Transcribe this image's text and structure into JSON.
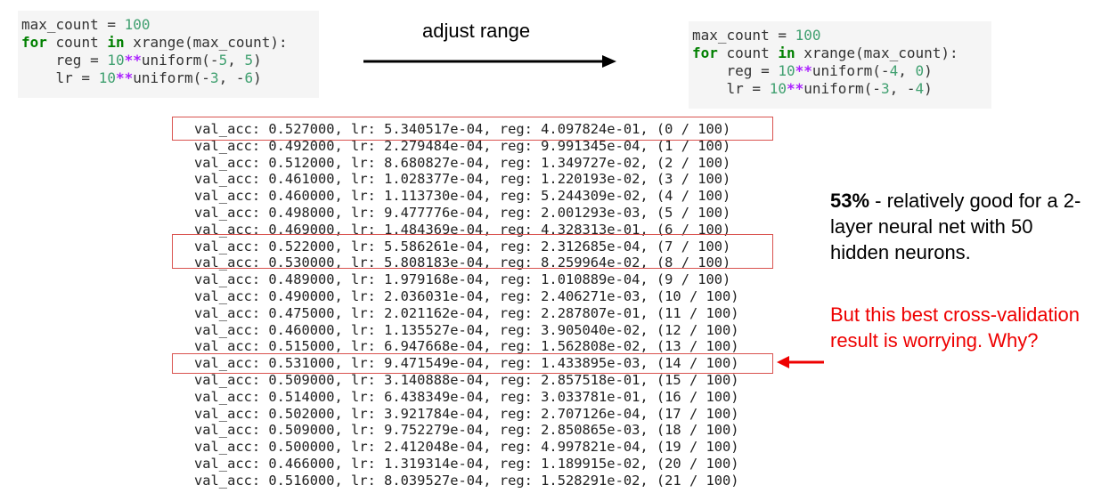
{
  "code_before": [
    [
      "max_count = ",
      "100"
    ],
    [
      "for",
      " count ",
      "in",
      " xrange(max_count):"
    ],
    [
      "    reg = ",
      "10",
      "**",
      "uniform(-",
      "5",
      ", ",
      "5",
      ")"
    ],
    [
      "    lr = ",
      "10",
      "**",
      "uniform(-",
      "3",
      ", -",
      "6",
      ")"
    ]
  ],
  "arrow_label": "adjust range",
  "code_after": [
    [
      "max_count = ",
      "100"
    ],
    [
      "for",
      " count ",
      "in",
      " xrange(max_count):"
    ],
    [
      "    reg = ",
      "10",
      "**",
      "uniform(-",
      "4",
      ", ",
      "0",
      ")"
    ],
    [
      "    lr = ",
      "10",
      "**",
      "uniform(-",
      "3",
      ", -",
      "4",
      ")"
    ]
  ],
  "log_lines": [
    "val_acc: 0.527000, lr: 5.340517e-04, reg: 4.097824e-01, (0 / 100)",
    "val_acc: 0.492000, lr: 2.279484e-04, reg: 9.991345e-04, (1 / 100)",
    "val_acc: 0.512000, lr: 8.680827e-04, reg: 1.349727e-02, (2 / 100)",
    "val_acc: 0.461000, lr: 1.028377e-04, reg: 1.220193e-02, (3 / 100)",
    "val_acc: 0.460000, lr: 1.113730e-04, reg: 5.244309e-02, (4 / 100)",
    "val_acc: 0.498000, lr: 9.477776e-04, reg: 2.001293e-03, (5 / 100)",
    "val_acc: 0.469000, lr: 1.484369e-04, reg: 4.328313e-01, (6 / 100)",
    "val_acc: 0.522000, lr: 5.586261e-04, reg: 2.312685e-04, (7 / 100)",
    "val_acc: 0.530000, lr: 5.808183e-04, reg: 8.259964e-02, (8 / 100)",
    "val_acc: 0.489000, lr: 1.979168e-04, reg: 1.010889e-04, (9 / 100)",
    "val_acc: 0.490000, lr: 2.036031e-04, reg: 2.406271e-03, (10 / 100)",
    "val_acc: 0.475000, lr: 2.021162e-04, reg: 2.287807e-01, (11 / 100)",
    "val_acc: 0.460000, lr: 1.135527e-04, reg: 3.905040e-02, (12 / 100)",
    "val_acc: 0.515000, lr: 6.947668e-04, reg: 1.562808e-02, (13 / 100)",
    "val_acc: 0.531000, lr: 9.471549e-04, reg: 1.433895e-03, (14 / 100)",
    "val_acc: 0.509000, lr: 3.140888e-04, reg: 2.857518e-01, (15 / 100)",
    "val_acc: 0.514000, lr: 6.438349e-04, reg: 3.033781e-01, (16 / 100)",
    "val_acc: 0.502000, lr: 3.921784e-04, reg: 2.707126e-04, (17 / 100)",
    "val_acc: 0.509000, lr: 9.752279e-04, reg: 2.850865e-03, (18 / 100)",
    "val_acc: 0.500000, lr: 2.412048e-04, reg: 4.997821e-04, (19 / 100)",
    "val_acc: 0.466000, lr: 1.319314e-04, reg: 1.189915e-02, (20 / 100)",
    "val_acc: 0.516000, lr: 8.039527e-04, reg: 1.528291e-02, (21 / 100)"
  ],
  "note": {
    "highlight": "53%",
    "text": " - relatively good for a 2-layer neural net with 50 hidden neurons."
  },
  "warning": "But this best cross-validation result is worrying. Why?"
}
